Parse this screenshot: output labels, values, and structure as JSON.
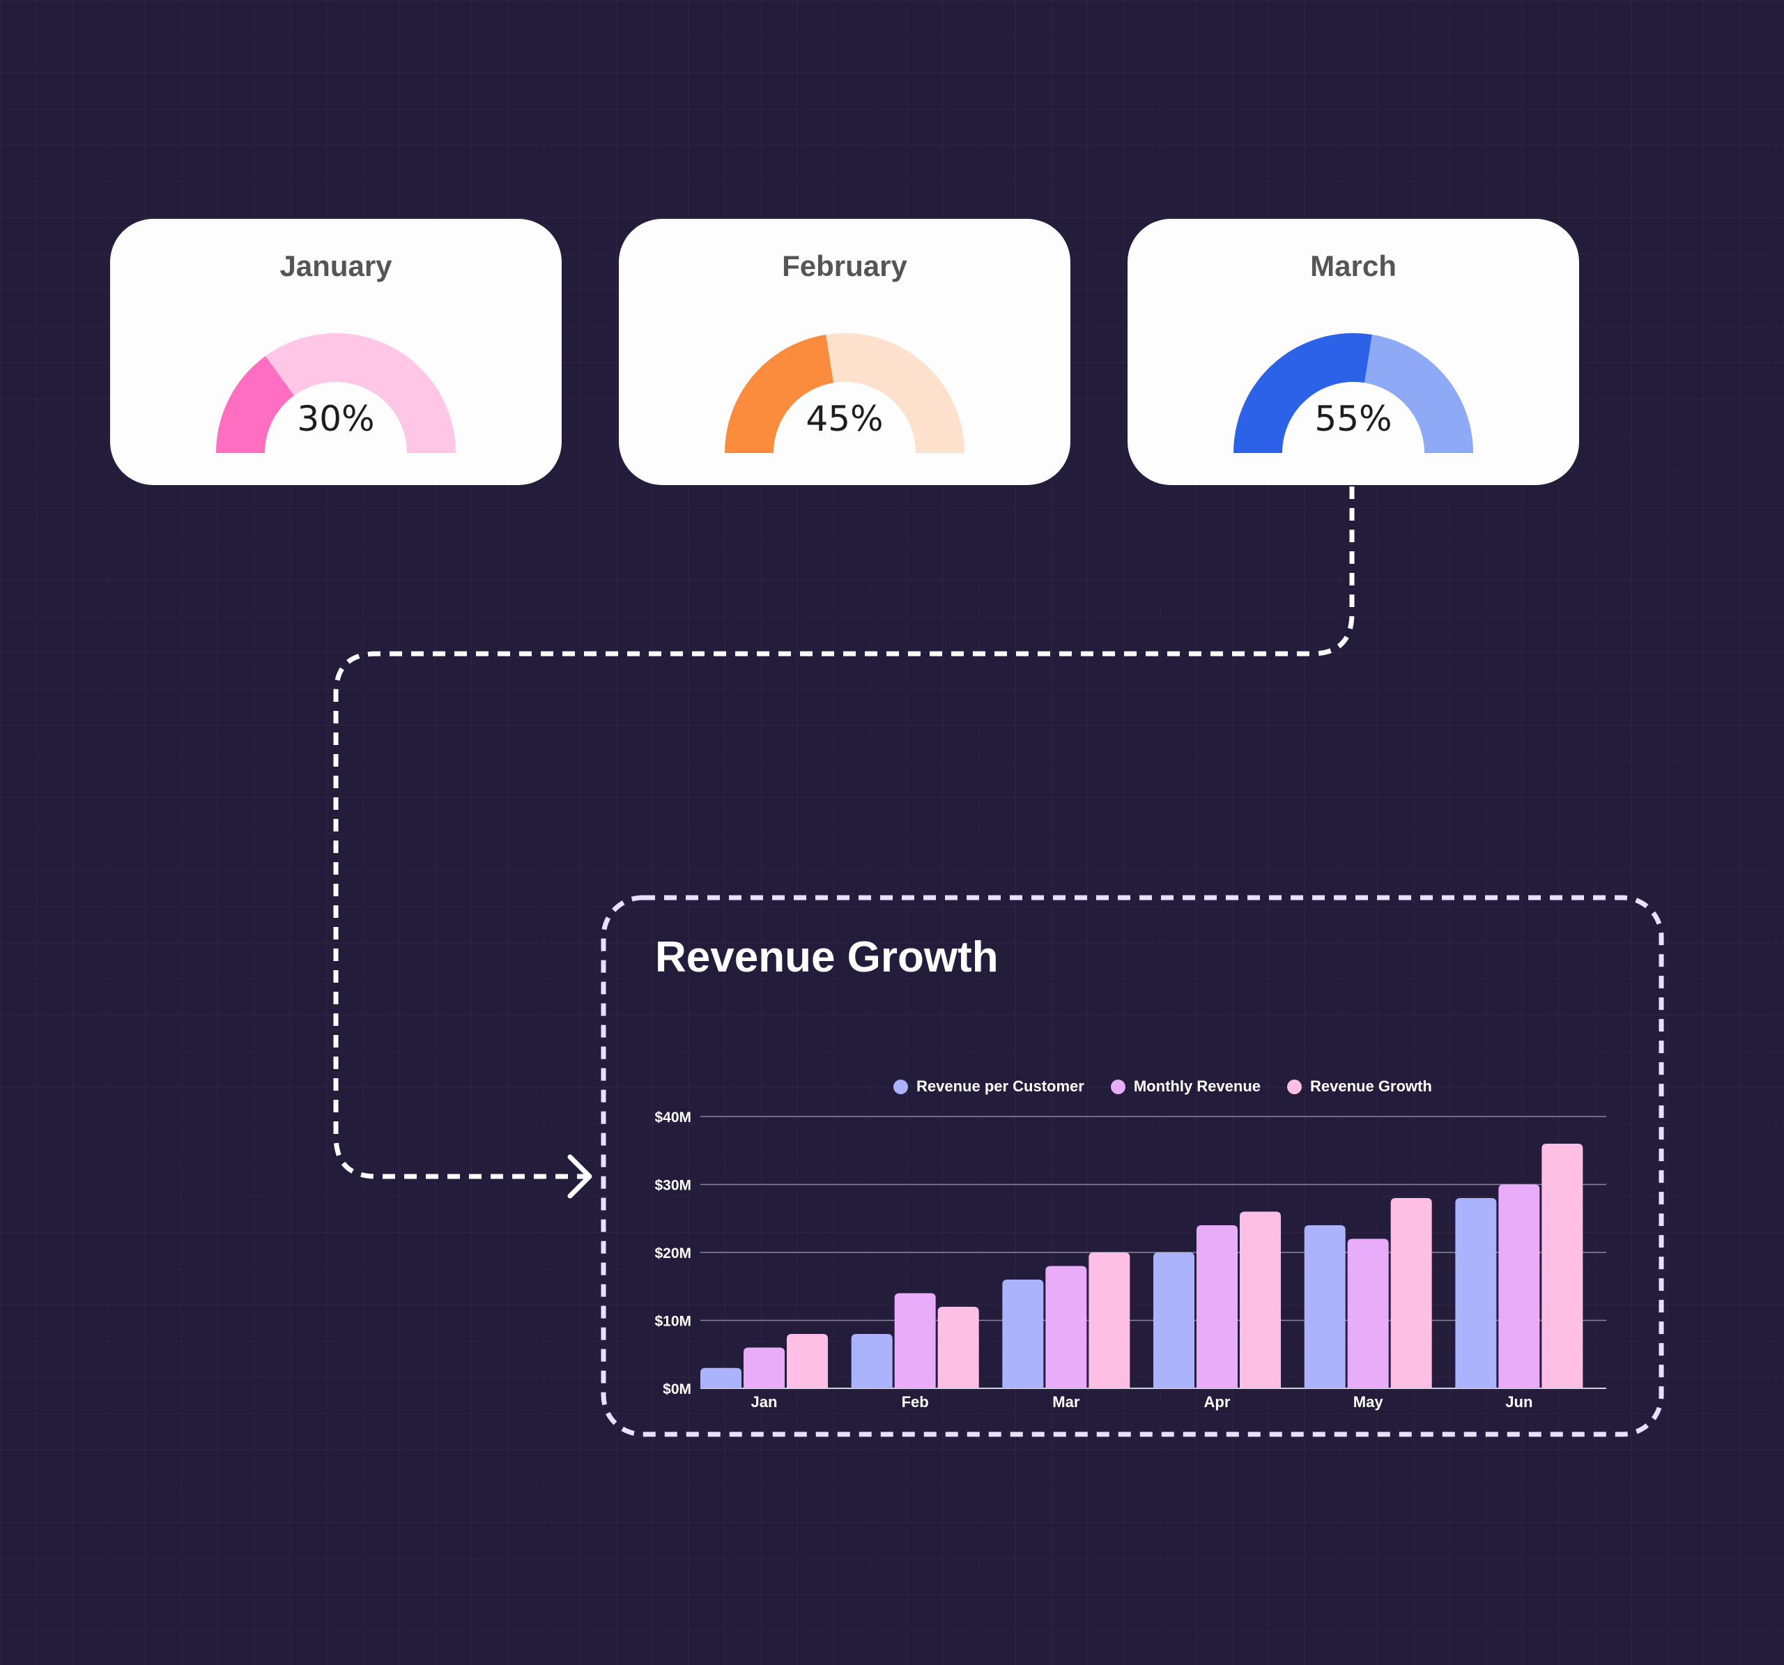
{
  "gauges": [
    {
      "month": "January",
      "label": "30%",
      "value": 0.3,
      "color_fill": "#ff6ec0",
      "color_track": "#ffc6e6"
    },
    {
      "month": "February",
      "label": "45%",
      "value": 0.45,
      "color_fill": "#fb8c3e",
      "color_track": "#fde1cc"
    },
    {
      "month": "March",
      "label": "55%",
      "value": 0.55,
      "color_fill": "#2c62e8",
      "color_track": "#8eaaf6"
    }
  ],
  "chart_data": {
    "type": "bar",
    "title": "Revenue Growth",
    "categories": [
      "Jan",
      "Feb",
      "Mar",
      "Apr",
      "May",
      "Jun"
    ],
    "series": [
      {
        "name": "Revenue per Customer",
        "color": "#aab3fc",
        "values": [
          3,
          8,
          16,
          20,
          24,
          28
        ]
      },
      {
        "name": "Monthly Revenue",
        "color": "#e8acf8",
        "values": [
          6,
          14,
          18,
          24,
          22,
          30
        ]
      },
      {
        "name": "Revenue Growth",
        "color": "#fdbfe4",
        "values": [
          8,
          12,
          20,
          26,
          28,
          36
        ]
      }
    ],
    "yticks": [
      "$0M",
      "$10M",
      "$20M",
      "$30M",
      "$40M"
    ],
    "ylim": [
      0,
      40
    ],
    "grid": true,
    "legend_position": "top-center"
  }
}
